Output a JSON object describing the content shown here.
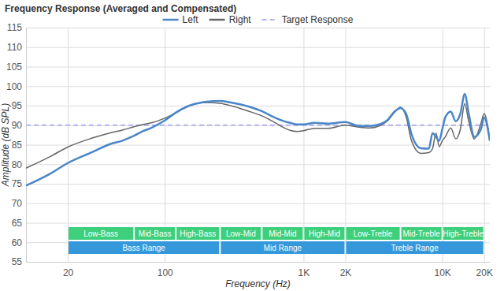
{
  "chart_data": {
    "type": "line",
    "title": "Frequency Response (Averaged and Compensated)",
    "x_label": "Frequency (Hz)",
    "y_label": "Amplitude (dB SPL)",
    "log": "x",
    "grid": true,
    "legend": "top",
    "xlim": [
      10,
      22000
    ],
    "ylim": [
      55,
      115
    ],
    "xticks": [
      20,
      100,
      {
        "value": 1000,
        "label": "1K"
      },
      {
        "value": 2000,
        "label": "2K"
      },
      {
        "value": 10000,
        "label": "10K"
      },
      {
        "value": 20000,
        "label": "20K"
      }
    ],
    "yticks": [
      55,
      60,
      65,
      70,
      75,
      80,
      85,
      90,
      95,
      100,
      105,
      110,
      115
    ],
    "x": [
      10,
      15,
      20,
      30,
      40,
      50,
      60,
      70,
      80,
      100,
      120,
      150,
      200,
      250,
      300,
      400,
      500,
      600,
      700,
      800,
      900,
      1000,
      1200,
      1500,
      2000,
      2500,
      3000,
      3500,
      4000,
      4500,
      5000,
      5500,
      6000,
      7000,
      8000,
      8500,
      9000,
      9500,
      10000,
      10500,
      11500,
      12500,
      13500,
      14500,
      15500,
      17000,
      19000,
      20000,
      22000
    ],
    "series": [
      {
        "name": "Left",
        "color": "#4a86c8",
        "line_style": "solid",
        "values": [
          74.5,
          77.6,
          80.3,
          83.1,
          85.1,
          86.1,
          87.3,
          88.5,
          89.3,
          91.2,
          93.2,
          95.0,
          96.0,
          96.2,
          95.8,
          94.8,
          93.6,
          92.2,
          91.2,
          90.6,
          90.2,
          90.2,
          90.6,
          90.4,
          90.8,
          89.8,
          89.8,
          90.2,
          91.2,
          93.4,
          94.4,
          92.8,
          87.7,
          84.1,
          84.0,
          88.0,
          87.0,
          86.0,
          89.0,
          92.0,
          93.5,
          91.0,
          93.0,
          98.0,
          93.0,
          87.0,
          89.0,
          92.0,
          86.0
        ]
      },
      {
        "name": "Right",
        "color": "#666666",
        "line_style": "solid",
        "values": [
          79.0,
          82.0,
          84.4,
          86.7,
          88.0,
          88.8,
          89.6,
          90.2,
          90.6,
          91.8,
          93.2,
          95.0,
          95.8,
          95.6,
          95.0,
          93.6,
          92.4,
          91.0,
          89.6,
          88.7,
          88.4,
          88.6,
          89.2,
          89.2,
          90.0,
          89.5,
          89.3,
          89.8,
          91.0,
          93.2,
          94.6,
          92.0,
          86.0,
          82.8,
          83.0,
          84.0,
          88.0,
          84.5,
          86.0,
          87.0,
          89.3,
          86.5,
          89.0,
          95.5,
          91.0,
          86.5,
          90.5,
          93.0,
          86.0
        ]
      }
    ],
    "reference_lines": [
      {
        "name": "Target Response",
        "value": 90,
        "color": "#b3b3f2",
        "line_style": "dashed"
      }
    ],
    "band_rows": [
      {
        "color": "#3dcf7c",
        "bands": [
          {
            "label": "Low-Bass",
            "start": 20,
            "end": 60
          },
          {
            "label": "Mid-Bass",
            "start": 60,
            "end": 120
          },
          {
            "label": "High-Bass",
            "start": 120,
            "end": 250
          },
          {
            "label": "Low-Mid",
            "start": 250,
            "end": 500
          },
          {
            "label": "Mid-Mid",
            "start": 500,
            "end": 1000
          },
          {
            "label": "High-Mid",
            "start": 1000,
            "end": 2000
          },
          {
            "label": "Low-Treble",
            "start": 2000,
            "end": 5000
          },
          {
            "label": "Mid-Treble",
            "start": 5000,
            "end": 10000
          },
          {
            "label": "High-Treble",
            "start": 10000,
            "end": 20000
          }
        ]
      },
      {
        "color": "#3498db",
        "bands": [
          {
            "label": "Bass Range",
            "start": 20,
            "end": 250
          },
          {
            "label": "Mid Range",
            "start": 250,
            "end": 2000
          },
          {
            "label": "Treble Range",
            "start": 2000,
            "end": 20000
          }
        ]
      }
    ]
  }
}
